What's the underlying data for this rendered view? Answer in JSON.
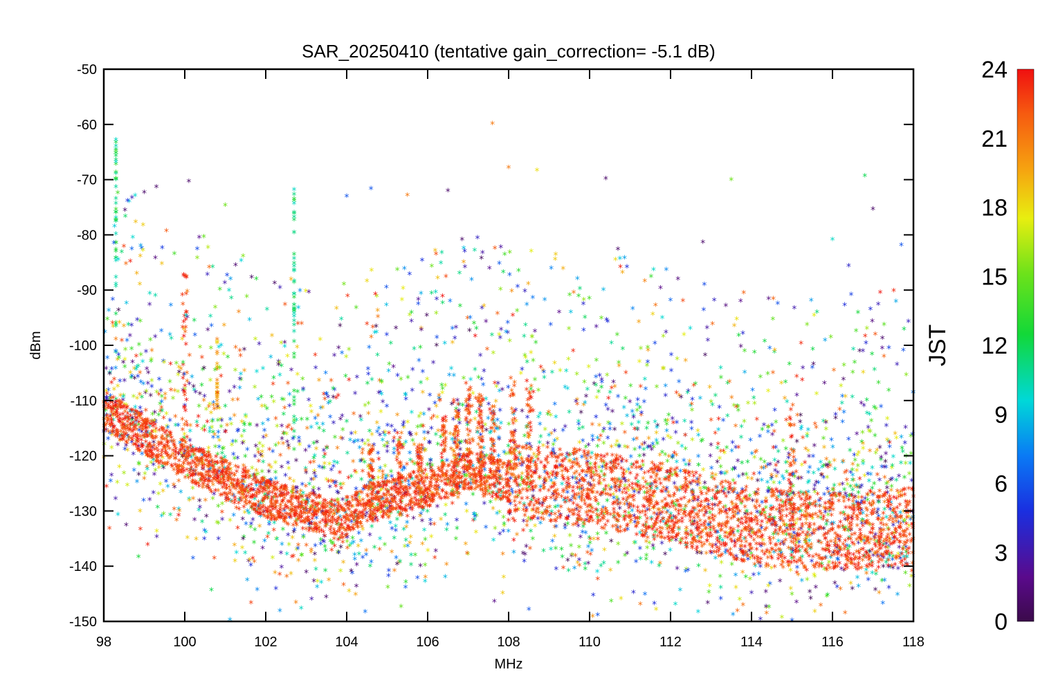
{
  "chart_data": {
    "type": "scatter",
    "title": "SAR_20250410 (tentative gain_correction= -5.1 dB)",
    "xlabel": "MHz",
    "ylabel": "dBm",
    "xlim": [
      98,
      118
    ],
    "ylim": [
      -150,
      -50
    ],
    "x_ticks": [
      "98",
      "100",
      "102",
      "104",
      "106",
      "108",
      "110",
      "112",
      "114",
      "116",
      "118"
    ],
    "y_ticks": [
      "-50",
      "-60",
      "-70",
      "-80",
      "-90",
      "-100",
      "-110",
      "-120",
      "-130",
      "-140",
      "-150"
    ],
    "marker": "star",
    "grid": false,
    "colorbar": {
      "label": "JST",
      "range": [
        0,
        24
      ],
      "ticks": [
        "0",
        "3",
        "6",
        "9",
        "12",
        "15",
        "18",
        "21",
        "24"
      ],
      "colormap": "rainbow",
      "position": "right"
    },
    "noise_floor": {
      "x": [
        98,
        100,
        102,
        103.8,
        104.5,
        106,
        107,
        108,
        110,
        112,
        114,
        116,
        118
      ],
      "y": [
        -112,
        -121,
        -128,
        -132,
        -129,
        -126,
        -123,
        -125,
        -126,
        -129,
        -133,
        -134,
        -133
      ]
    },
    "fm_carrier_peaks": [
      {
        "x": 104.6,
        "y": -118
      },
      {
        "x": 105.3,
        "y": -116
      },
      {
        "x": 105.8,
        "y": -118
      },
      {
        "x": 106.4,
        "y": -113
      },
      {
        "x": 106.7,
        "y": -110
      },
      {
        "x": 107.0,
        "y": -107
      },
      {
        "x": 107.3,
        "y": -109
      },
      {
        "x": 107.6,
        "y": -111
      },
      {
        "x": 108.1,
        "y": -106
      },
      {
        "x": 108.5,
        "y": -106
      },
      {
        "x": 100.0,
        "y": -87
      },
      {
        "x": 115.0,
        "y": -111
      }
    ],
    "outliers": [
      {
        "x": 107.6,
        "y": -60,
        "c": 21
      },
      {
        "x": 98.3,
        "y": -63,
        "c": 10
      },
      {
        "x": 98.3,
        "y": -67,
        "c": 10
      },
      {
        "x": 100.1,
        "y": -70.5,
        "c": 1
      },
      {
        "x": 99.3,
        "y": -71.5,
        "c": 1
      },
      {
        "x": 99.0,
        "y": -72.5,
        "c": 1
      },
      {
        "x": 110.4,
        "y": -70,
        "c": 1
      },
      {
        "x": 104.6,
        "y": -71.8,
        "c": 6
      },
      {
        "x": 104.0,
        "y": -73.2,
        "c": 6
      },
      {
        "x": 102.7,
        "y": -72,
        "c": 10
      },
      {
        "x": 108.0,
        "y": -68,
        "c": 21
      },
      {
        "x": 108.7,
        "y": -68.5,
        "c": 18
      },
      {
        "x": 113.5,
        "y": -70.2,
        "c": 15
      },
      {
        "x": 116.8,
        "y": -69.5,
        "c": 12
      },
      {
        "x": 117.0,
        "y": -75.5,
        "c": 1
      },
      {
        "x": 106.5,
        "y": -72.2,
        "c": 1
      },
      {
        "x": 105.5,
        "y": -73.0,
        "c": 21
      },
      {
        "x": 101.0,
        "y": -74.8,
        "c": 15
      },
      {
        "x": 116.0,
        "y": -81,
        "c": 10
      },
      {
        "x": 117.7,
        "y": -82,
        "c": 6
      },
      {
        "x": 116.4,
        "y": -85.8,
        "c": 4
      },
      {
        "x": 110.7,
        "y": -82.8,
        "c": 1
      },
      {
        "x": 112.8,
        "y": -81.5,
        "c": 1
      },
      {
        "x": 108.5,
        "y": -148,
        "c": 6
      },
      {
        "x": 110.2,
        "y": -149,
        "c": 6
      },
      {
        "x": 115.0,
        "y": -150,
        "c": 6
      }
    ]
  }
}
